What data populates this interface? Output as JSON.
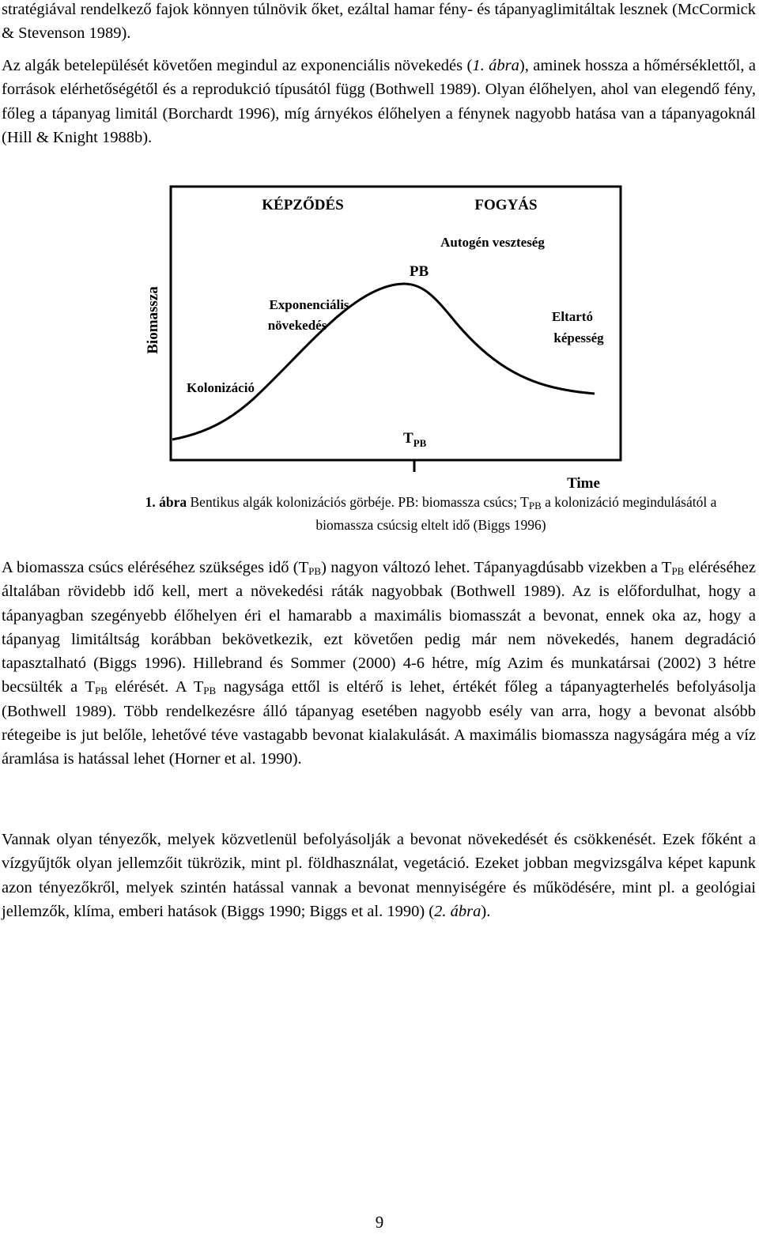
{
  "paragraphs": [
    [
      "stratégiával rendelkező fajok könnyen túlnövik őket, ezáltal hamar fény- és tápanyaglimitáltak lesznek (McCormick & Stevenson 1989)."
    ],
    [
      "Az algák betelepülését követően megindul az exponenciális növekedés (",
      "1. ábra",
      "), aminek hossza a hőmérséklettől, a források elérhetőségétől és a reprodukció típusától függ (Bothwell 1989). Olyan élőhelyen, ahol van elegendő fény, főleg a tápanyag limitál (Borchardt 1996), míg árnyékos élőhelyen a fénynek nagyobb hatása van a tápanyagoknál (Hill & Knight 1988b)."
    ],
    [
      "A biomassza csúcs eléréséhez szükséges idő (T",
      "PB",
      ") nagyon változó lehet. Tápanyagdúsabb vizekben a T",
      "PB",
      " eléréséhez általában rövidebb idő kell, mert a növekedési ráták nagyobbak (Bothwell 1989). Az is előfordulhat, hogy a tápanyagban szegényebb élőhelyen éri el hamarabb a maximális biomasszát a bevonat, ennek oka az, hogy a tápanyag limitáltság korábban bekövetkezik, ezt követően pedig már nem növekedés, hanem degradáció tapasztalható (Biggs 1996). Hillebrand és Sommer (2000) 4-6 hétre, míg Azim és munkatársai (2002) 3 hétre becsülték a T",
      "PB",
      " elérését. A T",
      "PB",
      " nagysága ettől is eltérő is lehet, értékét főleg a tápanyagterhelés befolyásolja (Bothwell 1989). Több rendelkezésre álló tápanyag esetében nagyobb esély van arra, hogy a bevonat alsóbb rétegeibe is jut belőle, lehetővé téve vastagabb bevonat kialakulását. A maximális biomassza nagyságára még a víz áramlása is hatással lehet (Horner et al. 1990)."
    ],
    [
      "Vannak olyan tényezők, melyek közvetlenül befolyásolják a bevonat növekedését és csökkenését. Ezek főként a vízgyűjtők olyan jellemzőit tükrözik, mint pl. földhasználat, vegetáció. Ezeket jobban megvizsgálva képet kapunk azon tényezőkről, melyek szintén hatással vannak a bevonat mennyiségére és működésére, mint pl. a geológiai jellemzők, klíma, emberi hatások (Biggs 1990; Biggs et al. 1990) (",
      "2. ábra",
      ")."
    ]
  ],
  "figure": {
    "labels": {
      "formation": "KÉPZŐDÉS",
      "loss": "FOGYÁS",
      "autogenic_loss": "Autogén veszteség",
      "peak": "PB",
      "y_axis": "Biomassza",
      "exponential": [
        "Exponenciális",
        "növekedés"
      ],
      "capacity": [
        "Eltartó",
        "képesség"
      ],
      "colonization": "Kolonizáció",
      "tpb": [
        "T",
        "PB"
      ],
      "x_axis": "Time"
    },
    "caption": [
      "1. ábra",
      " Bentikus algák kolonizációs görbéje. PB: biomassza csúcs; T",
      "PB",
      " a kolonizáció megindulásától a biomassza csúcsig eltelt idő (Biggs 1996)"
    ]
  },
  "page_number": "9"
}
